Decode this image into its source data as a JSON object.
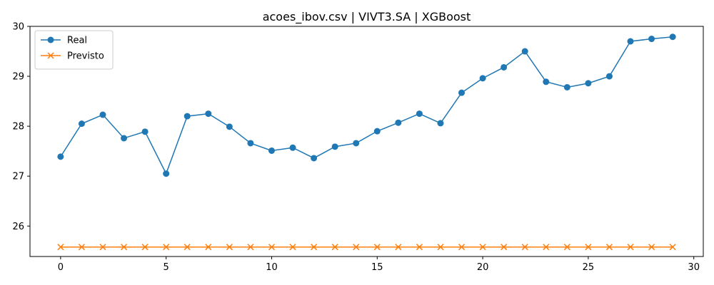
{
  "chart_data": {
    "type": "line",
    "title": "acoes_ibov.csv | VIVT3.SA | XGBoost",
    "xlabel": "",
    "ylabel": "",
    "x": [
      0,
      1,
      2,
      3,
      4,
      5,
      6,
      7,
      8,
      9,
      10,
      11,
      12,
      13,
      14,
      15,
      16,
      17,
      18,
      19,
      20,
      21,
      22,
      23,
      24,
      25,
      26,
      27,
      28,
      29
    ],
    "series": [
      {
        "name": "Real",
        "color": "#1f77b4",
        "marker": "circle",
        "values": [
          27.39,
          28.05,
          28.23,
          27.76,
          27.89,
          27.05,
          28.2,
          28.25,
          27.99,
          27.66,
          27.51,
          27.57,
          27.36,
          27.59,
          27.66,
          27.9,
          28.07,
          28.25,
          28.06,
          28.67,
          28.96,
          29.18,
          29.5,
          28.89,
          28.78,
          28.86,
          29.0,
          29.7,
          29.75,
          29.79
        ]
      },
      {
        "name": "Previsto",
        "color": "#ff7f0e",
        "marker": "x",
        "values": [
          25.58,
          25.58,
          25.58,
          25.58,
          25.58,
          25.58,
          25.58,
          25.58,
          25.58,
          25.58,
          25.58,
          25.58,
          25.58,
          25.58,
          25.58,
          25.58,
          25.58,
          25.58,
          25.58,
          25.58,
          25.58,
          25.58,
          25.58,
          25.58,
          25.58,
          25.58,
          25.58,
          25.58,
          25.58,
          25.58
        ]
      }
    ],
    "xlim": [
      -1.45,
      30.45
    ],
    "ylim": [
      25.39,
      30.0
    ],
    "xticks": [
      0,
      5,
      10,
      15,
      20,
      25,
      30
    ],
    "yticks": [
      26,
      27,
      28,
      29,
      30
    ],
    "grid": false,
    "legend_position": "upper-left"
  }
}
